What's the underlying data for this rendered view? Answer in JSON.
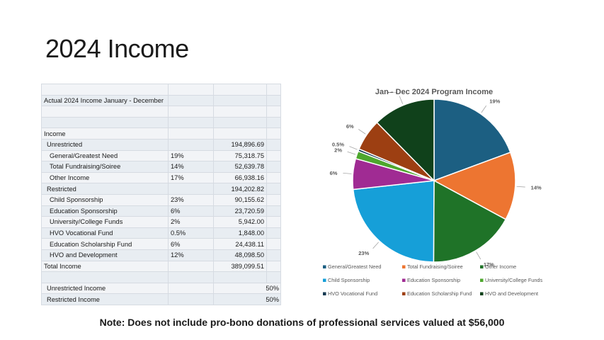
{
  "slide": {
    "title": "2024 Income",
    "note": "Note: Does not include pro-bono donations of professional services valued at $56,000"
  },
  "table": {
    "rows": [
      {
        "label": "",
        "pct": "",
        "amount": ""
      },
      {
        "label": "Actual 2024 Income January - December",
        "pct": "",
        "amount": ""
      },
      {
        "label": "",
        "pct": "",
        "amount": ""
      },
      {
        "label": "",
        "pct": "",
        "amount": ""
      },
      {
        "label": "Income",
        "pct": "",
        "amount": ""
      },
      {
        "label": "Unrestricted",
        "pct": "",
        "amount": "194,896.69"
      },
      {
        "label": "General/Greatest Need",
        "pct": "19%",
        "amount": "75,318.75"
      },
      {
        "label": "Total Fundraising/Soiree",
        "pct": "14%",
        "amount": "52,639.78"
      },
      {
        "label": "Other Income",
        "pct": "17%",
        "amount": "66,938.16"
      },
      {
        "label": "Restricted",
        "pct": "",
        "amount": "194,202.82"
      },
      {
        "label": "Child Sponsorship",
        "pct": "23%",
        "amount": "90,155.62"
      },
      {
        "label": "Education Sponsorship",
        "pct": "6%",
        "amount": "23,720.59"
      },
      {
        "label": "University/College Funds",
        "pct": "2%",
        "amount": "5,942.00"
      },
      {
        "label": "HVO Vocational Fund",
        "pct": "0.5%",
        "amount": "1,848.00"
      },
      {
        "label": "Education Scholarship Fund",
        "pct": "6%",
        "amount": "24,438.11"
      },
      {
        "label": "HVO and Development",
        "pct": "12%",
        "amount": "48,098.50"
      },
      {
        "label": "Total Income",
        "pct": "",
        "amount": "389,099.51"
      },
      {
        "label": "",
        "pct": "",
        "amount": ""
      },
      {
        "label": "Unrestricted Income",
        "pct": "",
        "amount": "50%"
      },
      {
        "label": "Restricted Income",
        "pct": "",
        "amount": "50%"
      }
    ]
  },
  "chart_data": {
    "type": "pie",
    "title": "Jan - Dec 2024 Program Income",
    "legend_position": "bottom",
    "slices": [
      {
        "name": "General/Greatest Need",
        "value": 75318.75,
        "label": "19%",
        "color": "#1c5f82"
      },
      {
        "name": "Total Fundraising/Soiree",
        "value": 52639.78,
        "label": "14%",
        "color": "#ed7531"
      },
      {
        "name": "Other Income",
        "value": 66938.16,
        "label": "17%",
        "color": "#1f7328"
      },
      {
        "name": "Child Sponsorship",
        "value": 90155.62,
        "label": "23%",
        "color": "#169fd8"
      },
      {
        "name": "Education Sponsorship",
        "value": 23720.59,
        "label": "6%",
        "color": "#a02b93"
      },
      {
        "name": "University/College Funds",
        "value": 5942.0,
        "label": "2%",
        "color": "#4ea72e"
      },
      {
        "name": "HVO Vocational Fund",
        "value": 1848.0,
        "label": "0.5%",
        "color": "#173a52"
      },
      {
        "name": "Education Scholarship Fund",
        "value": 24438.11,
        "label": "6%",
        "color": "#9d3f12"
      },
      {
        "name": "HVO and Development",
        "value": 48098.5,
        "label": "12%",
        "color": "#10411b"
      }
    ]
  }
}
